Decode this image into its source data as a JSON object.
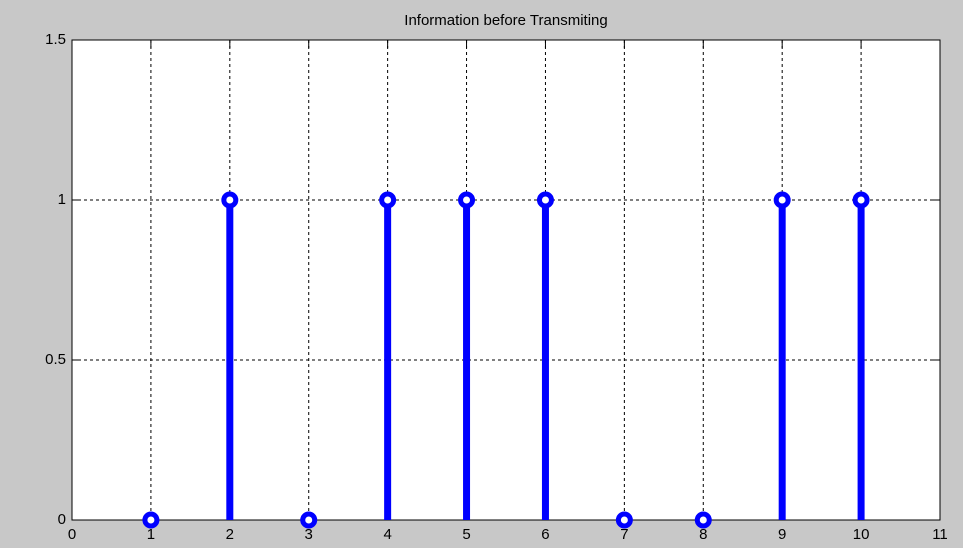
{
  "chart_data": {
    "type": "stem",
    "title": "Information before Transmiting",
    "x": [
      1,
      2,
      3,
      4,
      5,
      6,
      7,
      8,
      9,
      10
    ],
    "values": [
      0,
      1,
      0,
      1,
      1,
      1,
      0,
      0,
      1,
      1
    ],
    "color": "#0000ff",
    "xlim": [
      0,
      11
    ],
    "xticks": [
      0,
      1,
      2,
      3,
      4,
      5,
      6,
      7,
      8,
      9,
      10,
      11
    ],
    "ylim": [
      0,
      1.5
    ],
    "yticks": [
      0,
      0.5,
      1,
      1.5
    ],
    "grid": true
  }
}
